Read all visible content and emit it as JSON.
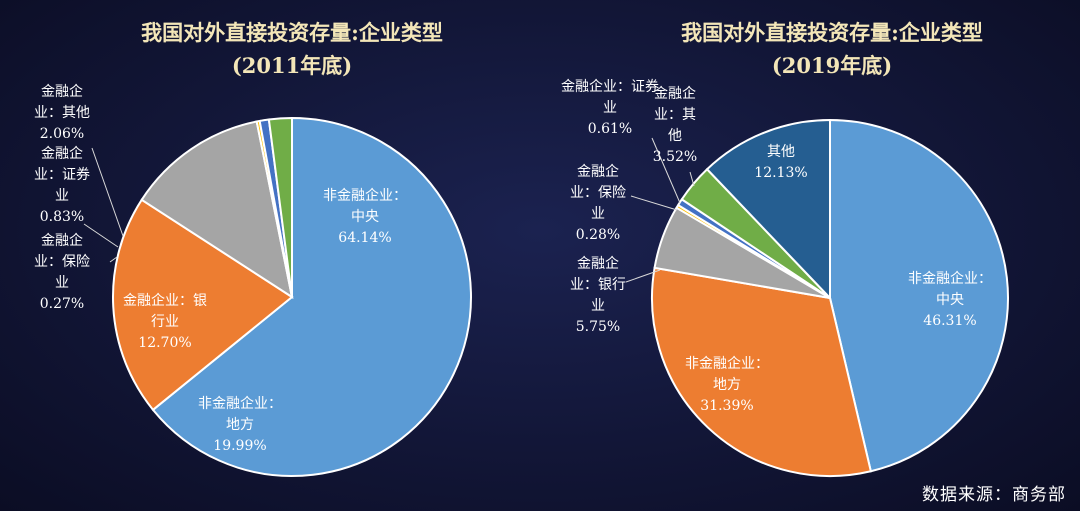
{
  "chart_data": [
    {
      "type": "pie",
      "title": "我国对外直接投资存量:企业类型",
      "subtitle": "(2011年底)",
      "slices": [
        {
          "label": "非金融企业：中央",
          "value": 64.14,
          "value_text": "64.14%",
          "color": "#5b9bd5"
        },
        {
          "label": "非金融企业：地方",
          "value": 19.99,
          "value_text": "19.99%",
          "color": "#ed7d31"
        },
        {
          "label": "金融企业：银行业",
          "value": 12.7,
          "value_text": "12.70%",
          "color": "#a5a5a5"
        },
        {
          "label": "金融企业：保险业",
          "value": 0.27,
          "value_text": "0.27%",
          "color": "#ffc000"
        },
        {
          "label": "金融企业：证券业",
          "value": 0.83,
          "value_text": "0.83%",
          "color": "#4472c4"
        },
        {
          "label": "金融企业：其他",
          "value": 2.06,
          "value_text": "2.06%",
          "color": "#70ad47"
        }
      ]
    },
    {
      "type": "pie",
      "title": "我国对外直接投资存量:企业类型",
      "subtitle": "(2019年底)",
      "slices": [
        {
          "label": "非金融企业：中央",
          "value": 46.31,
          "value_text": "46.31%",
          "color": "#5b9bd5"
        },
        {
          "label": "非金融企业：地方",
          "value": 31.39,
          "value_text": "31.39%",
          "color": "#ed7d31"
        },
        {
          "label": "金融企业：银行业",
          "value": 5.75,
          "value_text": "5.75%",
          "color": "#a5a5a5"
        },
        {
          "label": "金融企业：保险业",
          "value": 0.28,
          "value_text": "0.28%",
          "color": "#ffc000"
        },
        {
          "label": "金融企业：证券业",
          "value": 0.61,
          "value_text": "0.61%",
          "color": "#4472c4"
        },
        {
          "label": "金融企业：其他",
          "value": 3.52,
          "value_text": "3.52%",
          "color": "#70ad47"
        },
        {
          "label": "其他",
          "value": 12.13,
          "value_text": "12.13%",
          "color": "#255e91"
        }
      ]
    }
  ],
  "source_text": "数据来源：商务部"
}
